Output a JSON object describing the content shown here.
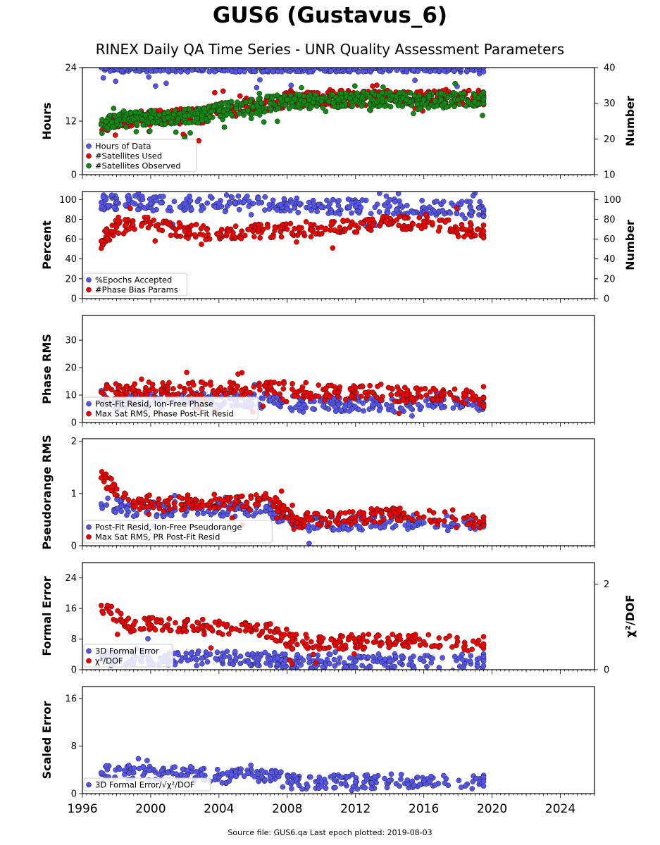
{
  "title": "GUS6 (Gustavus_6)",
  "subtitle": "RINEX Daily QA Time Series - UNR Quality Assessment Parameters",
  "footer": "Source file: GUS6.qa Last epoch plotted: 2019-08-03",
  "colors": {
    "blue": "#5555ee",
    "red": "#ee0000",
    "green": "#118811",
    "edge": "#222222"
  },
  "chart_data": [
    {
      "type": "scatter",
      "ylabel": "Hours",
      "ylabel_right": "Number",
      "xlim": [
        1996,
        2026
      ],
      "ylim": [
        0,
        24
      ],
      "ylim_right": [
        10,
        40
      ],
      "yticks": [
        0,
        12,
        24
      ],
      "yticks_right": [
        10,
        20,
        30,
        40
      ],
      "xticks": [
        "1996",
        "2000",
        "2004",
        "2008",
        "2012",
        "2016",
        "2020",
        "2024"
      ],
      "legend": [
        "Hours of Data",
        "#Satellites Used",
        "#Satellites Observed"
      ],
      "series": [
        {
          "name": "Hours of Data",
          "axis": "left",
          "x": [
            1997.1,
            1998,
            1999,
            2000,
            2001,
            2002,
            2003,
            2004,
            2005,
            2006,
            2007,
            2008,
            2009,
            2010,
            2011,
            2012,
            2013,
            2014,
            2015,
            2016,
            2017,
            2018,
            2019.5
          ],
          "y": [
            24,
            24,
            24,
            24,
            24,
            24,
            24,
            24,
            24,
            24,
            24,
            24,
            24,
            24,
            24,
            24,
            24,
            24,
            24,
            24,
            24,
            24,
            24
          ]
        },
        {
          "name": "#Satellites Used",
          "axis": "right",
          "x": [
            1997.1,
            1998,
            1999,
            2000,
            2001,
            2002,
            2003,
            2004,
            2005,
            2006,
            2007,
            2008,
            2009,
            2010,
            2011,
            2012,
            2013,
            2014,
            2015,
            2016,
            2017,
            2018,
            2019.5
          ],
          "y": [
            24,
            25,
            25.5,
            26,
            26,
            26.5,
            26.5,
            28,
            28.5,
            29,
            30,
            31,
            31,
            31,
            31.5,
            31.5,
            31.5,
            31.5,
            31.5,
            31.5,
            31.5,
            31.5,
            31.5
          ]
        },
        {
          "name": "#Satellites Observed",
          "axis": "right",
          "x": [
            1997.1,
            1998,
            1999,
            2000,
            2001,
            2002,
            2003,
            2004,
            2005,
            2006,
            2007,
            2008,
            2009,
            2010,
            2011,
            2012,
            2013,
            2014,
            2015,
            2016,
            2017,
            2018,
            2019.5
          ],
          "y": [
            24,
            25,
            25.5,
            26,
            26,
            26.5,
            26.5,
            28,
            28.5,
            29,
            30,
            31,
            30.5,
            30.5,
            31,
            31,
            31,
            31,
            31,
            31,
            31,
            31,
            31
          ]
        }
      ]
    },
    {
      "type": "scatter",
      "ylabel": "Percent",
      "ylabel_right": "Number",
      "xlim": [
        1996,
        2026
      ],
      "ylim": [
        0,
        108
      ],
      "ylim_right": [
        0,
        108
      ],
      "yticks": [
        0,
        20,
        40,
        60,
        80,
        100
      ],
      "yticks_right": [
        0,
        20,
        40,
        60,
        80,
        100
      ],
      "legend": [
        "%Epochs Accepted",
        "#Phase Bias Params"
      ],
      "series": [
        {
          "name": "%Epochs Accepted",
          "axis": "left",
          "x": [
            1997.1,
            1998,
            2000,
            2002,
            2004,
            2006,
            2008,
            2010,
            2012,
            2014,
            2016,
            2018,
            2019.5
          ],
          "y": [
            97,
            97,
            96,
            96,
            96,
            96,
            95,
            92,
            93,
            93,
            92,
            91,
            90
          ]
        },
        {
          "name": "#Phase Bias Params",
          "axis": "right",
          "x": [
            1997.1,
            1998,
            2000,
            2002,
            2004,
            2006,
            2008,
            2010,
            2012,
            2014,
            2016,
            2018,
            2019.5
          ],
          "y": [
            58,
            72,
            75,
            68,
            66,
            68,
            70,
            72,
            74,
            76,
            78,
            70,
            68
          ]
        }
      ]
    },
    {
      "type": "scatter",
      "ylabel": "Phase RMS",
      "xlim": [
        1996,
        2026
      ],
      "ylim": [
        0,
        39
      ],
      "yticks": [
        0,
        10,
        20,
        30
      ],
      "legend": [
        "Post-Fit Resid, Ion-Free Phase",
        "Max Sat RMS, Phase Post-Fit Resid"
      ],
      "series": [
        {
          "name": "Post-Fit Resid, Ion-Free Phase",
          "x": [
            1997.1,
            1999,
            2001,
            2003,
            2005,
            2007,
            2009,
            2011,
            2013,
            2015,
            2017,
            2019.5
          ],
          "y": [
            8,
            8,
            8,
            8,
            8,
            8,
            6.5,
            6.5,
            6.5,
            6.5,
            6.5,
            6.5
          ]
        },
        {
          "name": "Max Sat RMS, Phase Post-Fit Resid",
          "x": [
            1997.1,
            1999,
            2001,
            2003,
            2005,
            2007,
            2009,
            2011,
            2013,
            2015,
            2017,
            2019.5
          ],
          "y": [
            11,
            12,
            12,
            12,
            12,
            13,
            11,
            11,
            11,
            10,
            10,
            9
          ]
        }
      ]
    },
    {
      "type": "scatter",
      "ylabel": "Pseudorange RMS",
      "xlim": [
        1996,
        2026
      ],
      "ylim": [
        0,
        2.05
      ],
      "yticks": [
        0,
        1,
        2
      ],
      "legend": [
        "Post-Fit Resid, Ion-Free Pseudorange",
        "Max Sat RMS, PR Post-Fit Resid"
      ],
      "series": [
        {
          "name": "Post-Fit Resid, Ion-Free Pseudorange",
          "x": [
            1997.1,
            1999,
            2001,
            2003,
            2005,
            2007,
            2008.3,
            2010,
            2012,
            2014,
            2016,
            2019.5
          ],
          "y": [
            0.8,
            0.7,
            0.7,
            0.7,
            0.7,
            0.7,
            0.42,
            0.42,
            0.44,
            0.46,
            0.44,
            0.42
          ]
        },
        {
          "name": "Max Sat RMS, PR Post-Fit Resid",
          "x": [
            1997.1,
            1999,
            2001,
            2003,
            2005,
            2007,
            2008.3,
            2010,
            2012,
            2014,
            2016,
            2019.5
          ],
          "y": [
            1.3,
            0.85,
            0.8,
            0.85,
            0.85,
            0.88,
            0.48,
            0.5,
            0.55,
            0.6,
            0.55,
            0.48
          ]
        }
      ]
    },
    {
      "type": "scatter",
      "ylabel": "Formal Error",
      "ylabel_right": "χ²/DOF",
      "xlim": [
        1996,
        2026
      ],
      "ylim": [
        0,
        28
      ],
      "ylim_right": [
        0,
        2.5
      ],
      "yticks": [
        0,
        8,
        16,
        24
      ],
      "yticks_right": [
        0,
        2
      ],
      "legend": [
        "3D Formal Error",
        "χ²/DOF"
      ],
      "series": [
        {
          "name": "3D Formal Error",
          "axis": "left",
          "x": [
            1997.1,
            1999,
            2001,
            2003,
            2005,
            2007,
            2008.3,
            2010,
            2012,
            2014,
            2016,
            2019.5
          ],
          "y": [
            3.5,
            3,
            3,
            3,
            3,
            2.8,
            2.2,
            2.2,
            2.2,
            2.2,
            2.2,
            2.2
          ]
        },
        {
          "name": "χ²/DOF",
          "axis": "right",
          "x": [
            1997.1,
            1999,
            2001,
            2003,
            2005,
            2007,
            2008.3,
            2010,
            2012,
            2014,
            2016,
            2019.5
          ],
          "y": [
            1.5,
            1.05,
            1.05,
            1.0,
            0.95,
            0.9,
            0.65,
            0.65,
            0.65,
            0.65,
            0.65,
            0.6
          ]
        }
      ]
    },
    {
      "type": "scatter",
      "ylabel": "Scaled Error",
      "xlim": [
        1996,
        2026
      ],
      "ylim": [
        0,
        18
      ],
      "yticks": [
        0,
        8,
        16
      ],
      "legend": [
        "3D Formal Error/√χ²/DOF"
      ],
      "series": [
        {
          "name": "3D Formal Error/√χ²/DOF",
          "x": [
            1997.1,
            1999,
            2001,
            2003,
            2005,
            2007,
            2008.3,
            2010,
            2012,
            2014,
            2016,
            2019.5
          ],
          "y": [
            3.5,
            3.5,
            3.5,
            3.2,
            2.9,
            2.8,
            2,
            2,
            2,
            2.2,
            2.2,
            2
          ]
        }
      ]
    }
  ]
}
